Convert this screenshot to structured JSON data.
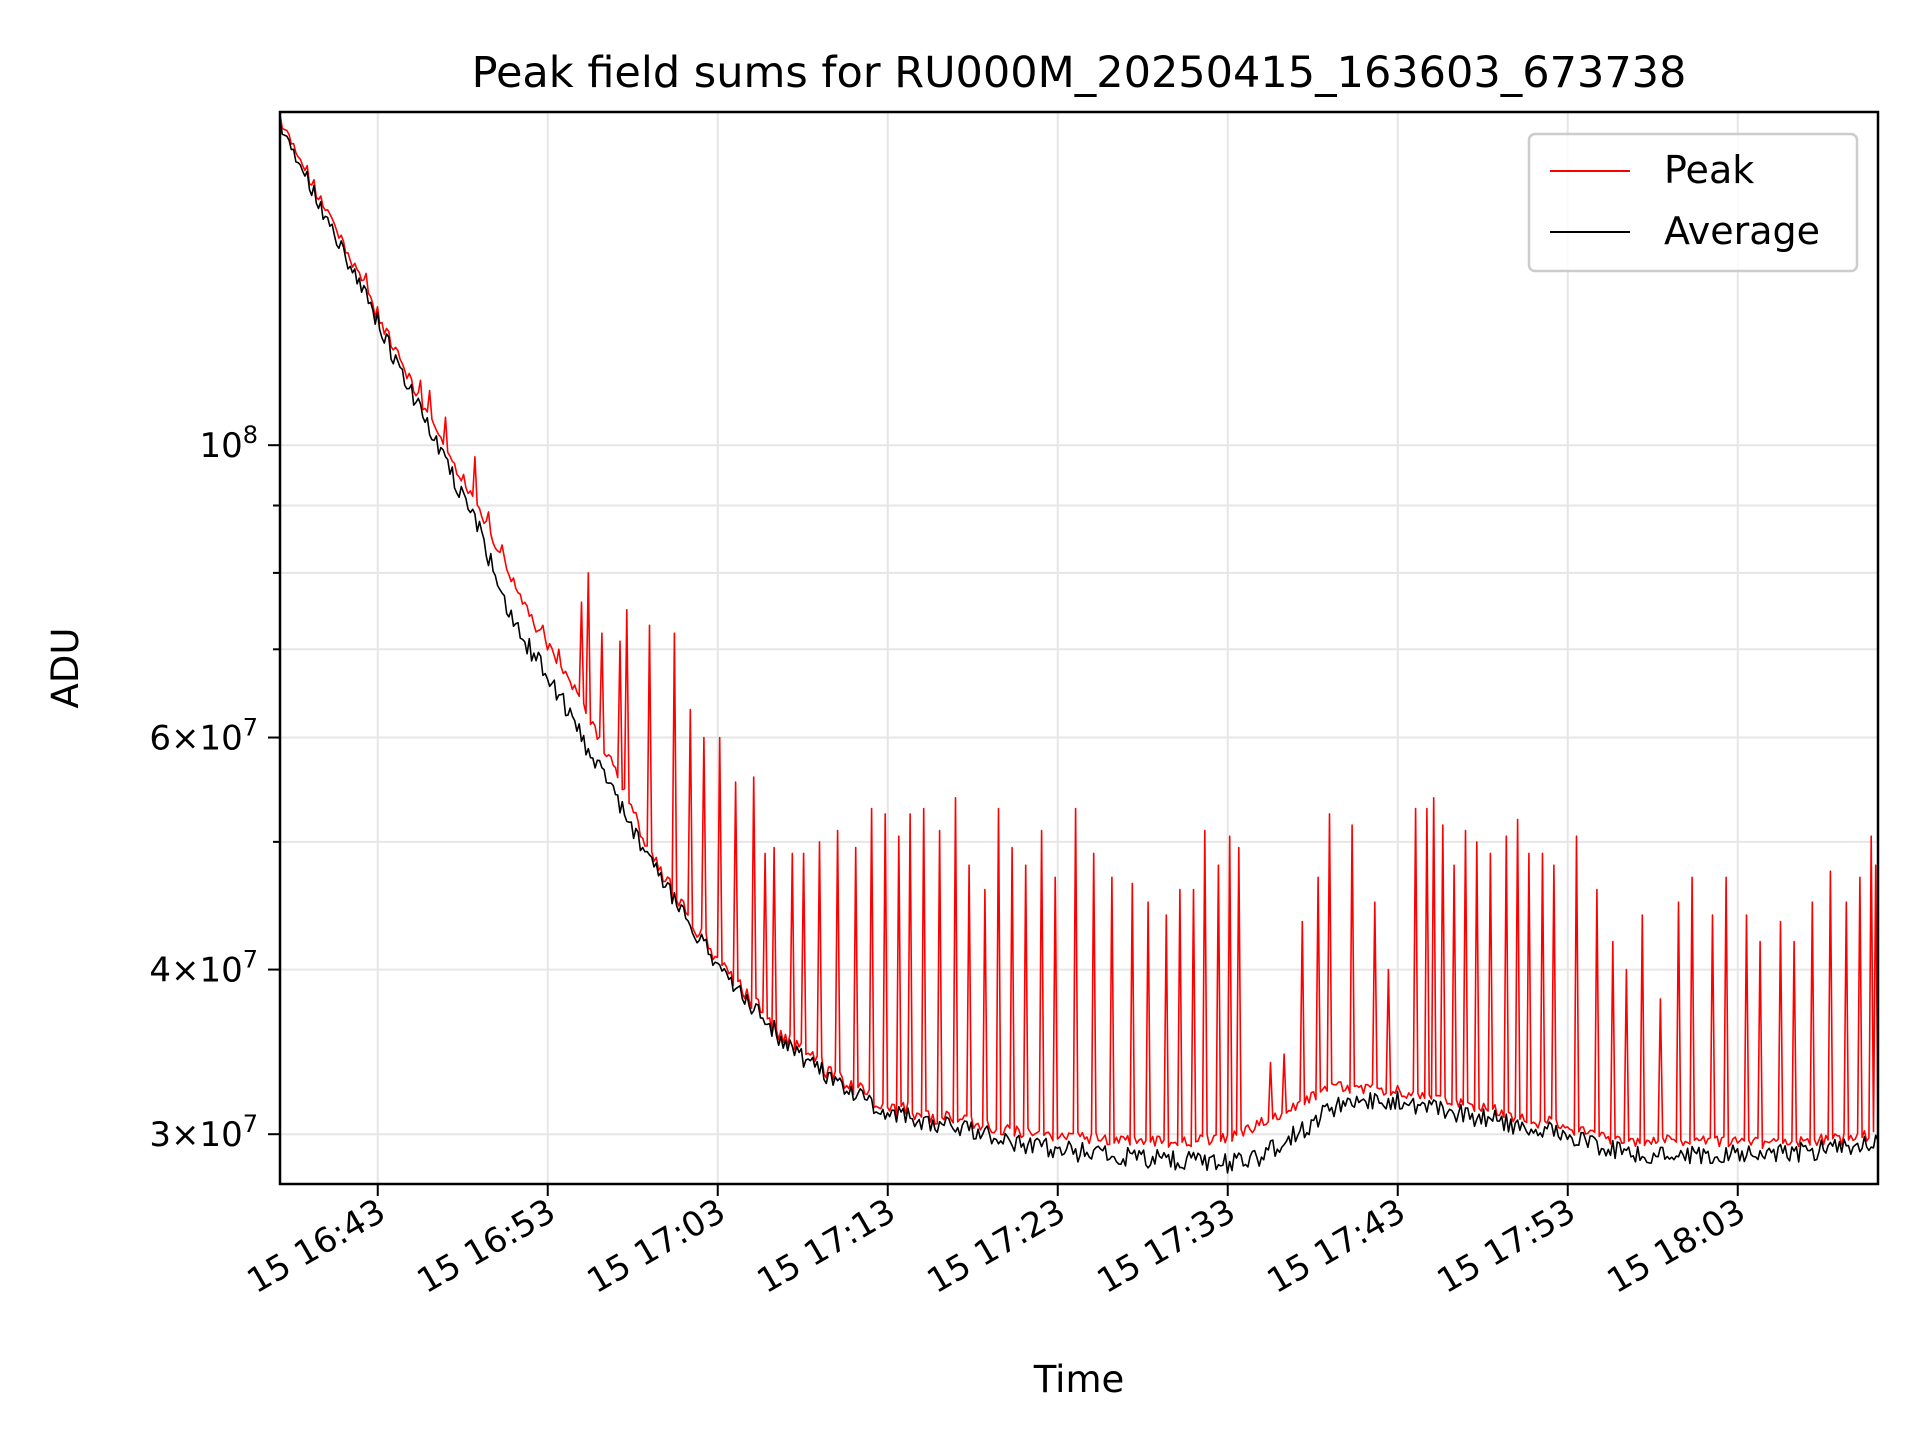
{
  "chart_data": {
    "type": "line",
    "title": "Peak field sums for RU000M_20250415_163603_673738",
    "xlabel": "Time",
    "ylabel": "ADU",
    "y_scale": "log",
    "ylim": [
      27500000,
      179000000
    ],
    "xlim": [
      "15 16:37:15",
      "15 18:11:15"
    ],
    "grid": true,
    "legend_position": "upper right",
    "x_ticks": [
      {
        "time": "16:43",
        "label": "15 16:43"
      },
      {
        "time": "16:53",
        "label": "15 16:53"
      },
      {
        "time": "17:03",
        "label": "15 17:03"
      },
      {
        "time": "17:13",
        "label": "15 17:13"
      },
      {
        "time": "17:23",
        "label": "15 17:23"
      },
      {
        "time": "17:33",
        "label": "15 17:33"
      },
      {
        "time": "17:43",
        "label": "15 17:43"
      },
      {
        "time": "17:53",
        "label": "15 17:53"
      },
      {
        "time": "18:03",
        "label": "15 18:03"
      }
    ],
    "y_major_ticks": [
      {
        "value": 100000000,
        "mantissa": "",
        "exponent": "8"
      },
      {
        "value": 60000000,
        "mantissa": "6",
        "exponent": "7"
      },
      {
        "value": 40000000,
        "mantissa": "4",
        "exponent": "7"
      },
      {
        "value": 30000000,
        "mantissa": "3",
        "exponent": "7"
      }
    ],
    "y_minor_ticks": [
      90000000,
      80000000,
      70000000,
      50000000
    ],
    "series": [
      {
        "name": "Peak",
        "color": "#ff0000",
        "baseline": [
          [
            "16:37:15",
            175000000
          ],
          [
            "16:40",
            150000000
          ],
          [
            "16:43",
            125000000
          ],
          [
            "16:46",
            105000000
          ],
          [
            "16:49",
            89000000
          ],
          [
            "16:52",
            74000000
          ],
          [
            "16:55",
            64000000
          ],
          [
            "16:58",
            53000000
          ],
          [
            "17:00",
            44000000
          ],
          [
            "17:02",
            38500000
          ],
          [
            "17:03",
            36500000
          ],
          [
            "17:05",
            34200000
          ],
          [
            "17:08",
            33000000
          ],
          [
            "17:11",
            31800000
          ],
          [
            "17:13",
            31000000
          ],
          [
            "17:17",
            30600000
          ],
          [
            "17:20",
            30200000
          ],
          [
            "17:23",
            29900000
          ],
          [
            "17:27",
            29700000
          ],
          [
            "17:30",
            29600000
          ],
          [
            "17:33",
            29800000
          ],
          [
            "17:36",
            31000000
          ],
          [
            "17:39",
            32600000
          ],
          [
            "17:43",
            32300000
          ],
          [
            "17:47",
            31500000
          ],
          [
            "17:50",
            30900000
          ],
          [
            "17:53",
            30200000
          ],
          [
            "17:56",
            29600000
          ],
          [
            "18:00",
            29700000
          ],
          [
            "18:03",
            29600000
          ],
          [
            "18:06",
            29500000
          ],
          [
            "18:09",
            29700000
          ],
          [
            "18:11:15",
            30000000
          ]
        ],
        "spikes": [
          [
            "16:42:20",
            135000000
          ],
          [
            "16:44:10",
            118000000
          ],
          [
            "16:45:30",
            112000000
          ],
          [
            "16:46:00",
            110000000
          ],
          [
            "16:47:00",
            105000000
          ],
          [
            "16:48:00",
            95000000
          ],
          [
            "16:48:40",
            98000000
          ],
          [
            "16:49:30",
            89000000
          ],
          [
            "16:50:20",
            84000000
          ],
          [
            "16:52:40",
            73000000
          ],
          [
            "16:53:40",
            70000000
          ],
          [
            "16:55:00",
            76000000
          ],
          [
            "16:55:20",
            80000000
          ],
          [
            "16:56:10",
            72000000
          ],
          [
            "16:57:15",
            71000000
          ],
          [
            "16:57:40",
            75000000
          ],
          [
            "16:59:00",
            73000000
          ],
          [
            "17:00:30",
            72000000
          ],
          [
            "17:01:20",
            63000000
          ],
          [
            "17:02:10",
            60000000
          ],
          [
            "17:03:10",
            60000000
          ],
          [
            "17:04:00",
            55500000
          ],
          [
            "17:05:10",
            56000000
          ],
          [
            "17:05:50",
            49000000
          ],
          [
            "17:06:20",
            49500000
          ],
          [
            "17:07:20",
            49000000
          ],
          [
            "17:08:00",
            49000000
          ],
          [
            "17:09:00",
            50000000
          ],
          [
            "17:10:00",
            51000000
          ],
          [
            "17:11:10",
            49500000
          ],
          [
            "17:12:00",
            53000000
          ],
          [
            "17:12:50",
            52500000
          ],
          [
            "17:13:40",
            50500000
          ],
          [
            "17:14:20",
            52500000
          ],
          [
            "17:15:10",
            53000000
          ],
          [
            "17:16:00",
            51000000
          ],
          [
            "17:17:00",
            54000000
          ],
          [
            "17:17:50",
            48000000
          ],
          [
            "17:18:40",
            46000000
          ],
          [
            "17:19:30",
            53000000
          ],
          [
            "17:20:20",
            49500000
          ],
          [
            "17:21:10",
            48000000
          ],
          [
            "17:22:00",
            51000000
          ],
          [
            "17:22:50",
            47000000
          ],
          [
            "17:24:00",
            53000000
          ],
          [
            "17:25:10",
            49000000
          ],
          [
            "17:26:10",
            47000000
          ],
          [
            "17:27:20",
            46500000
          ],
          [
            "17:28:20",
            45000000
          ],
          [
            "17:29:20",
            44000000
          ],
          [
            "17:30:10",
            46000000
          ],
          [
            "17:31:00",
            46000000
          ],
          [
            "17:31:40",
            51000000
          ],
          [
            "17:32:30",
            48000000
          ],
          [
            "17:33:10",
            50500000
          ],
          [
            "17:33:40",
            49500000
          ],
          [
            "17:35:30",
            34000000
          ],
          [
            "17:36:20",
            34500000
          ],
          [
            "17:37:20",
            43500000
          ],
          [
            "17:38:20",
            47000000
          ],
          [
            "17:39:00",
            52500000
          ],
          [
            "17:40:20",
            51500000
          ],
          [
            "17:41:40",
            45000000
          ],
          [
            "17:42:30",
            40000000
          ],
          [
            "17:44:00",
            53000000
          ],
          [
            "17:44:40",
            53000000
          ],
          [
            "17:45:10",
            54000000
          ],
          [
            "17:45:40",
            51500000
          ],
          [
            "17:46:20",
            48000000
          ],
          [
            "17:47:00",
            51000000
          ],
          [
            "17:47:40",
            50000000
          ],
          [
            "17:48:30",
            49000000
          ],
          [
            "17:49:20",
            50500000
          ],
          [
            "17:50:00",
            52000000
          ],
          [
            "17:50:40",
            49000000
          ],
          [
            "17:51:30",
            49000000
          ],
          [
            "17:52:10",
            48000000
          ],
          [
            "17:53:30",
            50500000
          ],
          [
            "17:54:40",
            46000000
          ],
          [
            "17:55:40",
            42000000
          ],
          [
            "17:56:30",
            40000000
          ],
          [
            "17:57:20",
            44000000
          ],
          [
            "17:58:30",
            38000000
          ],
          [
            "17:59:30",
            45000000
          ],
          [
            "18:00:20",
            47000000
          ],
          [
            "18:01:30",
            44000000
          ],
          [
            "18:02:20",
            47000000
          ],
          [
            "18:03:30",
            44000000
          ],
          [
            "18:04:20",
            42000000
          ],
          [
            "18:05:30",
            43500000
          ],
          [
            "18:06:20",
            42000000
          ],
          [
            "18:07:20",
            45000000
          ],
          [
            "18:08:30",
            47500000
          ],
          [
            "18:09:20",
            45000000
          ],
          [
            "18:10:10",
            47000000
          ],
          [
            "18:10:50",
            50500000
          ],
          [
            "18:11:10",
            48000000
          ]
        ]
      },
      {
        "name": "Average",
        "color": "#000000",
        "baseline": [
          [
            "16:37:15",
            175000000
          ],
          [
            "16:40",
            148000000
          ],
          [
            "16:43",
            124000000
          ],
          [
            "16:46",
            103000000
          ],
          [
            "16:49",
            86000000
          ],
          [
            "16:51",
            73000000
          ],
          [
            "16:53",
            67000000
          ],
          [
            "16:55",
            60000000
          ],
          [
            "16:57",
            54000000
          ],
          [
            "16:59",
            48500000
          ],
          [
            "17:01",
            44000000
          ],
          [
            "17:03",
            40500000
          ],
          [
            "17:05",
            37500000
          ],
          [
            "17:07",
            35200000
          ],
          [
            "17:09",
            33500000
          ],
          [
            "17:11",
            32200000
          ],
          [
            "17:13",
            31200000
          ],
          [
            "17:16",
            30500000
          ],
          [
            "17:19",
            29900000
          ],
          [
            "17:22",
            29300000
          ],
          [
            "17:25",
            29000000
          ],
          [
            "17:28",
            28800000
          ],
          [
            "17:31",
            28600000
          ],
          [
            "17:33",
            28500000
          ],
          [
            "17:35",
            28900000
          ],
          [
            "17:37",
            30000000
          ],
          [
            "17:40",
            32000000
          ],
          [
            "17:43",
            31800000
          ],
          [
            "17:46",
            31200000
          ],
          [
            "17:49",
            30700000
          ],
          [
            "17:52",
            30100000
          ],
          [
            "17:55",
            29300000
          ],
          [
            "17:58",
            28800000
          ],
          [
            "18:01",
            28900000
          ],
          [
            "18:04",
            29000000
          ],
          [
            "18:07",
            29100000
          ],
          [
            "18:09",
            29300000
          ],
          [
            "18:11:15",
            29800000
          ]
        ]
      }
    ]
  }
}
